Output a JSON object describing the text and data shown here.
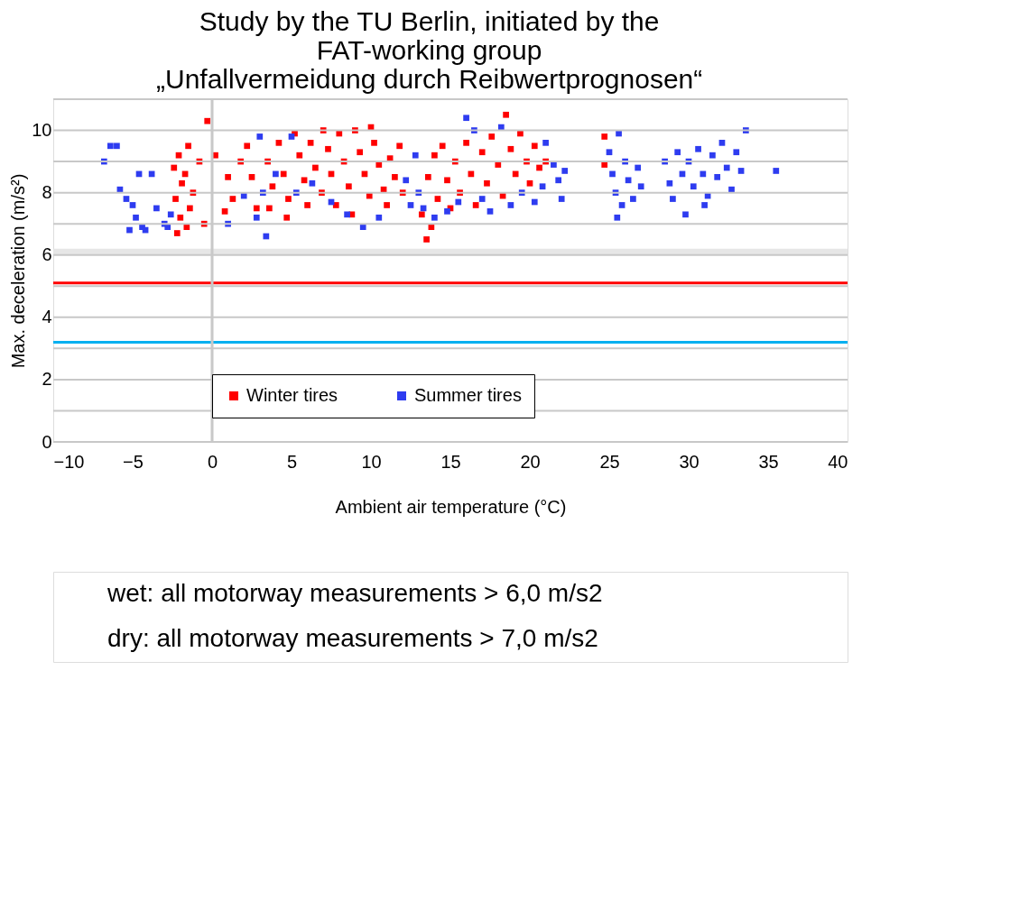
{
  "chart_data": {
    "type": "scatter",
    "title": [
      "Study by the TU Berlin, initiated by the",
      "FAT-working group",
      "„Unfallvermeidung durch Reibwertprognosen“"
    ],
    "xlabel": "Ambient air temperature (°C)",
    "ylabel": "Max. deceleration (m/s²)",
    "xlim": [
      -10,
      40
    ],
    "xticks": [
      -10,
      -5,
      0,
      5,
      10,
      15,
      20,
      25,
      30,
      35,
      40
    ],
    "ylim": [
      0,
      11
    ],
    "yticks": [
      0,
      {
        "value": 1,
        "label": null
      },
      2,
      {
        "value": 3,
        "label": null
      },
      4,
      {
        "value": 5,
        "label": null
      },
      6,
      {
        "value": 7,
        "label": null
      },
      8,
      {
        "value": 9,
        "label": null
      },
      10,
      {
        "value": 11,
        "label": null
      }
    ],
    "grid": "y",
    "legend": "bottom",
    "marker": "square",
    "ref_lines": [
      {
        "axis": "y",
        "value": 5.1,
        "color": "#ff0000"
      },
      {
        "axis": "y",
        "value": 3.2,
        "color": "#00b0f0"
      },
      {
        "axis": "x",
        "value": 0,
        "color": "#c8c8c8"
      }
    ],
    "bands": [
      {
        "axis": "y",
        "from": 6.0,
        "to": 6.2,
        "color": "#e6e6e6"
      }
    ],
    "annotations": [
      "wet: all motorway measurements > 6,0 m/s2",
      "dry: all motorway measurements > 7,0 m/s2"
    ],
    "series": [
      {
        "name": "Winter tires",
        "color": "#ff0000",
        "x": [
          -2.2,
          -2.0,
          -2.3,
          -1.9,
          -2.4,
          -2.1,
          -1.5,
          -1.7,
          -1.4,
          -1.6,
          -1.2,
          -0.8,
          -0.3,
          -0.5,
          0.2,
          0.8,
          1.0,
          1.3,
          1.8,
          2.2,
          2.8,
          2.5,
          3.5,
          3.8,
          3.6,
          4.2,
          4.5,
          4.8,
          4.7,
          5.2,
          5.5,
          5.8,
          6.0,
          6.2,
          6.5,
          6.9,
          7.3,
          7.5,
          7.8,
          8.0,
          8.3,
          8.6,
          8.8,
          9.0,
          9.3,
          9.6,
          9.9,
          10.2,
          10.5,
          10.8,
          11.2,
          11.5,
          11.0,
          11.8,
          12.0,
          10.0,
          7.0,
          13.2,
          13.5,
          13.8,
          13.6,
          14.0,
          14.2,
          14.5,
          14.8,
          15.0,
          15.3,
          15.6,
          16.0,
          16.3,
          16.6,
          17.0,
          17.3,
          17.6,
          18.0,
          18.3,
          18.5,
          18.8,
          19.1,
          19.4,
          19.8,
          20.0,
          20.3,
          20.6,
          21.0,
          24.7,
          24.7
        ],
        "values": [
          6.7,
          7.2,
          7.8,
          8.3,
          8.8,
          9.2,
          9.5,
          8.6,
          7.5,
          6.9,
          8.0,
          9.0,
          10.3,
          7.0,
          9.2,
          7.4,
          8.5,
          7.8,
          9.0,
          9.5,
          7.5,
          8.5,
          9.0,
          8.2,
          7.5,
          9.6,
          8.6,
          7.8,
          7.2,
          9.9,
          9.2,
          8.4,
          7.6,
          9.6,
          8.8,
          8.0,
          9.4,
          8.6,
          7.6,
          9.9,
          9.0,
          8.2,
          7.3,
          10.0,
          9.3,
          8.6,
          7.9,
          9.6,
          8.9,
          8.1,
          9.1,
          8.5,
          7.6,
          9.5,
          8.0,
          10.1,
          10.0,
          7.3,
          6.5,
          6.9,
          8.5,
          9.2,
          7.8,
          9.5,
          8.4,
          7.5,
          9.0,
          8.0,
          9.6,
          8.6,
          7.6,
          9.3,
          8.3,
          9.8,
          8.9,
          7.9,
          10.5,
          9.4,
          8.6,
          9.9,
          9.0,
          8.3,
          9.5,
          8.8,
          9.0,
          9.8,
          8.9
        ]
      },
      {
        "name": "Summer tires",
        "color": "#2e3cf0",
        "x": [
          -6.8,
          -6.4,
          -6.0,
          -5.8,
          -5.4,
          -5.0,
          -5.2,
          -4.6,
          -4.8,
          -4.4,
          -4.2,
          -3.8,
          -3.5,
          -3.0,
          -2.8,
          -2.6,
          1.0,
          2.0,
          3.0,
          2.8,
          3.2,
          3.4,
          4.0,
          5.0,
          5.3,
          6.3,
          7.5,
          8.5,
          9.5,
          10.5,
          12.5,
          12.2,
          12.8,
          13.0,
          13.3,
          14.0,
          14.8,
          15.5,
          16.0,
          16.5,
          17.0,
          17.5,
          18.2,
          18.8,
          19.5,
          20.3,
          20.8,
          21.0,
          21.5,
          21.8,
          22.0,
          22.2,
          25.0,
          25.2,
          25.4,
          25.6,
          25.8,
          26.0,
          26.2,
          26.5,
          26.8,
          27.0,
          25.5,
          28.5,
          28.8,
          29.0,
          29.3,
          29.6,
          29.8,
          30.0,
          30.3,
          30.6,
          30.9,
          31.2,
          31.5,
          31.8,
          32.1,
          32.4,
          32.7,
          33.0,
          33.3,
          33.6,
          31.0,
          35.5
        ],
        "values": [
          9.0,
          9.5,
          9.5,
          8.1,
          7.8,
          7.6,
          6.8,
          8.6,
          7.2,
          6.9,
          6.8,
          8.6,
          7.5,
          7.0,
          6.9,
          7.3,
          7.0,
          7.9,
          9.8,
          7.2,
          8.0,
          6.6,
          8.6,
          9.8,
          8.0,
          8.3,
          7.7,
          7.3,
          6.9,
          7.2,
          7.6,
          8.4,
          9.2,
          8.0,
          7.5,
          7.2,
          7.4,
          7.7,
          10.4,
          10.0,
          7.8,
          7.4,
          10.1,
          7.6,
          8.0,
          7.7,
          8.2,
          9.6,
          8.9,
          8.4,
          7.8,
          8.7,
          9.3,
          8.6,
          8.0,
          9.9,
          7.6,
          9.0,
          8.4,
          7.8,
          8.8,
          8.2,
          7.2,
          9.0,
          8.3,
          7.8,
          9.3,
          8.6,
          7.3,
          9.0,
          8.2,
          9.4,
          8.6,
          7.9,
          9.2,
          8.5,
          9.6,
          8.8,
          8.1,
          9.3,
          8.7,
          10.0,
          7.6,
          8.7
        ]
      }
    ]
  }
}
